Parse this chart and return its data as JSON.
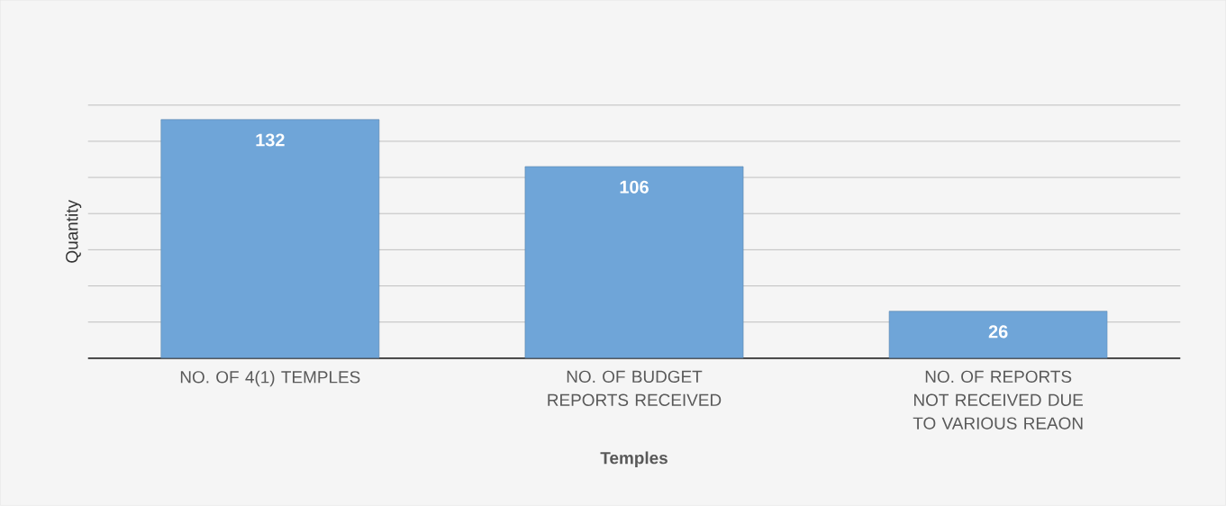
{
  "chart_data": {
    "type": "bar",
    "xlabel": "Temples",
    "ylabel": "Quantity",
    "categories": [
      "NO. OF 4(1) TEMPLES",
      "NO. OF BUDGET REPORTS RECEIVED",
      "NO. OF REPORTS NOT RECEIVED DUE TO VARIOUS REAON"
    ],
    "values": [
      132,
      106,
      26
    ],
    "color": "#6fa5d8",
    "ylim": [
      0,
      140
    ],
    "yticks": [
      {
        "value": 0,
        "label": null
      },
      {
        "value": 20,
        "label": null
      },
      {
        "value": 40,
        "label": null
      },
      {
        "value": 60,
        "label": null
      },
      {
        "value": 80,
        "label": null
      },
      {
        "value": 100,
        "label": null
      },
      {
        "value": 120,
        "label": null
      },
      {
        "value": 140,
        "label": null
      }
    ],
    "grid": "y",
    "tick_labels": "x",
    "data_labels": true
  }
}
